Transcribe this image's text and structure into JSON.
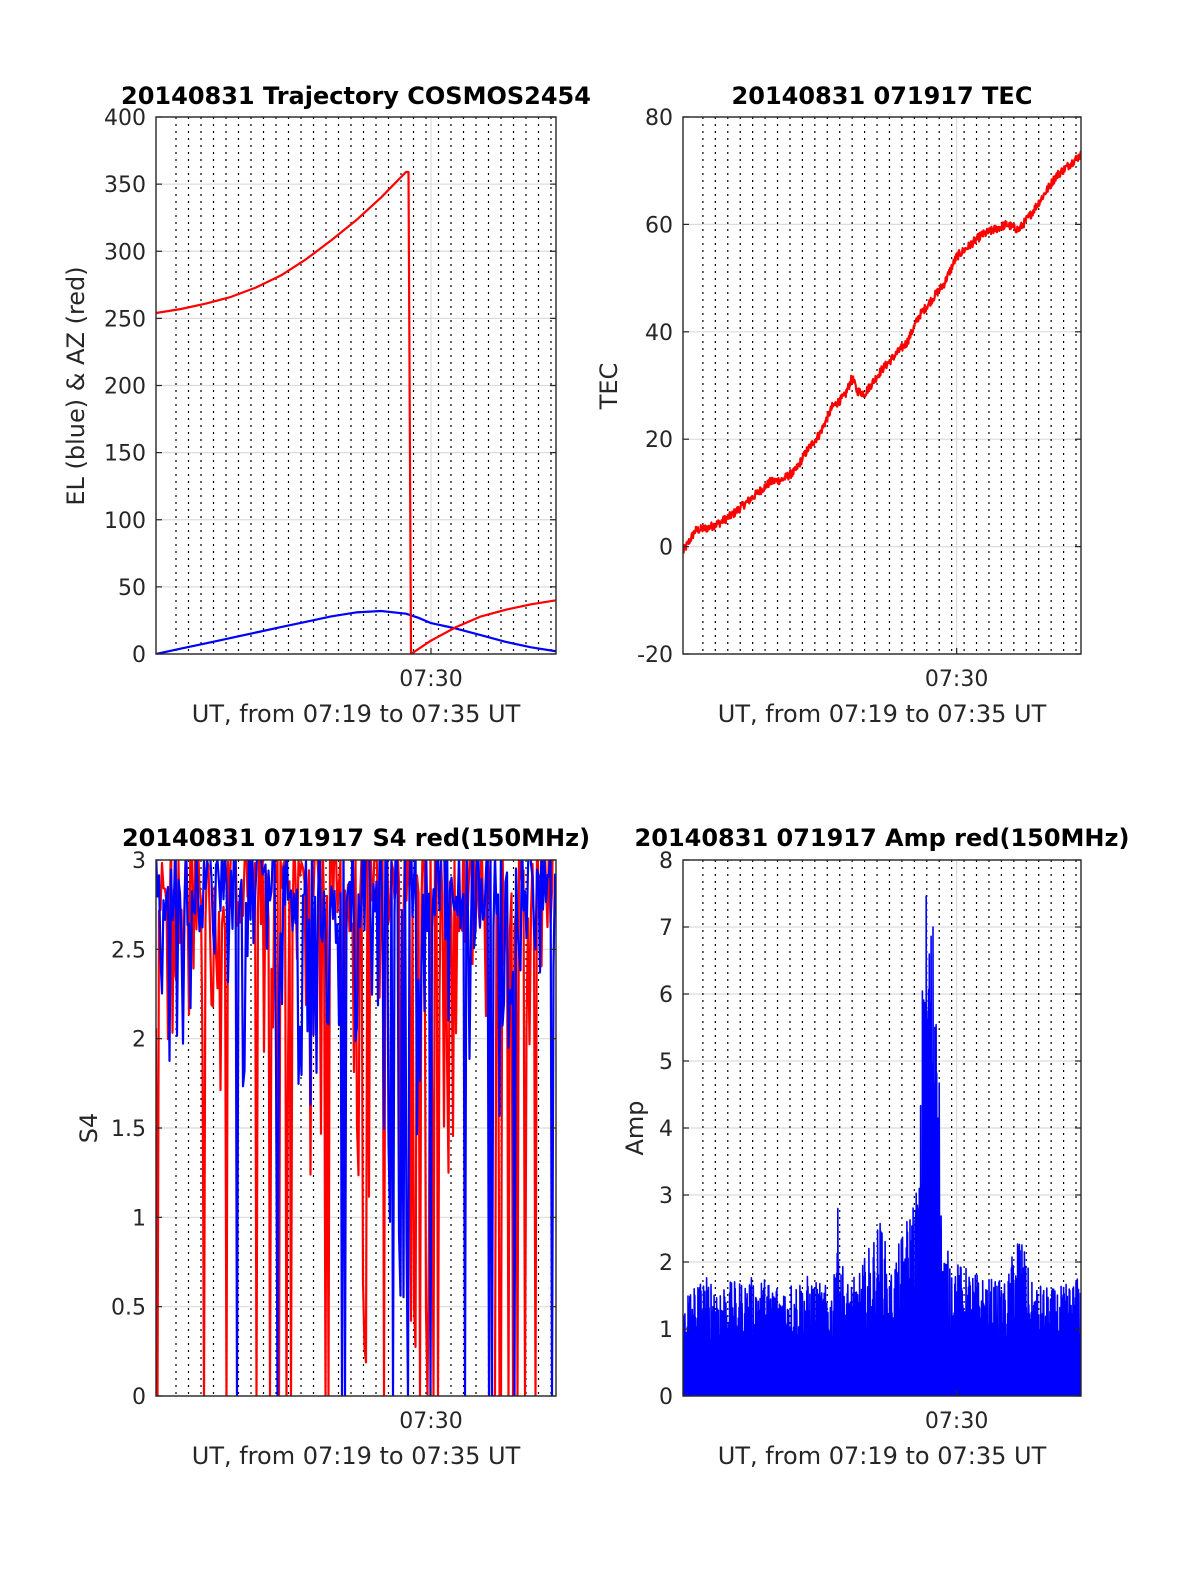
{
  "figure": {
    "background": "#ffffff"
  },
  "charts": [
    {
      "title": "20140831 Trajectory COSMOS2454",
      "xlabel": "UT, from 07:19 to 07:35 UT",
      "ylabel": "EL (blue) & AZ (red)",
      "xticks": [
        "07:30"
      ],
      "yticks": [
        "0",
        "50",
        "100",
        "150",
        "200",
        "250",
        "300",
        "350",
        "400"
      ]
    },
    {
      "title": "20140831 071917 TEC",
      "xlabel": "UT, from 07:19 to 07:35 UT",
      "ylabel": "TEC",
      "xticks": [
        "07:30"
      ],
      "yticks": [
        "-20",
        "0",
        "20",
        "40",
        "60",
        "80"
      ]
    },
    {
      "title": "20140831 071917 S4 red(150MHz)",
      "xlabel": "UT, from 07:19 to 07:35 UT",
      "ylabel": "S4",
      "xticks": [
        "07:30"
      ],
      "yticks": [
        "0",
        "0.5",
        "1",
        "1.5",
        "2",
        "2.5",
        "3"
      ]
    },
    {
      "title": "20140831 071917 Amp red(150MHz)",
      "xlabel": "UT, from 07:19 to 07:35 UT",
      "ylabel": "Amp",
      "xticks": [
        "07:30"
      ],
      "yticks": [
        "0",
        "1",
        "2",
        "3",
        "4",
        "5",
        "6",
        "7",
        "8"
      ]
    }
  ],
  "chart_data": [
    {
      "type": "line",
      "xrange_min": [
        0,
        16
      ],
      "x_tick_min": 11,
      "ylim": [
        0,
        400
      ],
      "grid": true,
      "minor_x_grid_dotted": true,
      "series": [
        {
          "color": "#0000ff",
          "x": [
            0,
            1,
            2,
            3,
            4,
            5,
            6,
            7,
            8,
            9,
            10,
            10.5,
            11,
            12,
            13,
            14,
            15,
            16
          ],
          "y": [
            0,
            4,
            8,
            12,
            16,
            20,
            24,
            28,
            31,
            32,
            30,
            27,
            23,
            19,
            14,
            9,
            5,
            2
          ]
        },
        {
          "color": "#ff0000",
          "x": [
            0,
            1,
            2,
            3,
            4,
            5,
            6,
            7,
            8,
            9,
            10,
            10.1,
            10.2,
            11,
            12,
            13,
            14,
            15,
            16
          ],
          "y": [
            254,
            257,
            261,
            266,
            273,
            282,
            294,
            308,
            323,
            340,
            359,
            359,
            0,
            10,
            20,
            28,
            33,
            37,
            40
          ]
        }
      ]
    },
    {
      "type": "line",
      "xrange_min": [
        0,
        16
      ],
      "x_tick_min": 11,
      "ylim": [
        -20,
        80
      ],
      "grid": true,
      "minor_x_grid_dotted": true,
      "noise_amplitude": 0.8,
      "series": [
        {
          "color": "#ff0000",
          "x": [
            0,
            0.5,
            1,
            1.5,
            2,
            3,
            3.5,
            4,
            4.5,
            5,
            5.5,
            6,
            6.5,
            6.8,
            7,
            7.3,
            8,
            9,
            9.5,
            10,
            10.5,
            11,
            11.5,
            12,
            13,
            13.5,
            14,
            15,
            16
          ],
          "y": [
            -1,
            3,
            3.5,
            4.5,
            6,
            10,
            12,
            12.5,
            14,
            18,
            21,
            26,
            28,
            31.5,
            29,
            28.5,
            33,
            38,
            43,
            46,
            49,
            54,
            56,
            58,
            60,
            59,
            62,
            69,
            73
          ]
        }
      ]
    },
    {
      "type": "line",
      "xrange_min": [
        0,
        16
      ],
      "x_tick_min": 11,
      "ylim": [
        0,
        3
      ],
      "grid": true,
      "minor_x_grid_dotted": true,
      "series": [
        {
          "color": "#ff0000",
          "x": [
            0.2,
            0.6,
            1.1,
            1.7,
            2.3,
            2.9,
            3.3,
            3.9,
            4.4,
            5.1,
            5.7,
            6.3,
            6.8,
            7.2,
            7.8,
            8.4,
            9.0,
            9.6,
            10.2,
            10.6,
            11.3,
            11.8,
            12.4,
            13.0,
            13.7,
            14.3,
            14.9,
            15.5
          ],
          "y": [
            2.4,
            1.9,
            2.6,
            2.1,
            2.5,
            1.2,
            2.0,
            0.3,
            2.2,
            1.6,
            2.7,
            1.0,
            2.3,
            0.7,
            2.1,
            0.3,
            2.5,
            1.5,
            0.6,
            0.2,
            2.4,
            1.2,
            2.7,
            2.2,
            1.8,
            2.6,
            2.0,
            2.9
          ]
        },
        {
          "color": "#0000ff",
          "x": [
            0.1,
            0.5,
            0.9,
            1.3,
            1.8,
            2.4,
            3.0,
            3.5,
            4.1,
            4.7,
            5.3,
            5.9,
            6.5,
            7.1,
            7.7,
            8.3,
            8.9,
            9.5,
            10.1,
            10.7,
            11.3,
            11.9,
            12.5,
            13.1,
            13.7,
            14.3,
            14.9,
            15.5
          ],
          "y": [
            2.6,
            1.7,
            2.4,
            2.0,
            2.5,
            2.3,
            2.6,
            2.1,
            2.8,
            2.2,
            2.7,
            1.6,
            2.3,
            2.5,
            1.9,
            2.7,
            2.2,
            1.1,
            0.7,
            2.6,
            1.9,
            2.5,
            2.0,
            2.6,
            1.8,
            2.4,
            2.7,
            2.2
          ]
        }
      ]
    },
    {
      "type": "line",
      "xrange_min": [
        0,
        16
      ],
      "x_tick_min": 11,
      "ylim": [
        0,
        8
      ],
      "grid": true,
      "minor_x_grid_dotted": true,
      "series": [
        {
          "color": "#0000ff",
          "x": [
            0,
            1,
            2,
            3,
            4,
            5,
            6,
            6.2,
            6.5,
            7,
            8,
            8.3,
            9.5,
            9.7,
            10,
            10.2,
            10.4,
            11,
            12,
            13,
            13.5,
            14,
            15,
            16
          ],
          "y": [
            1.6,
            1.8,
            1.7,
            1.8,
            1.7,
            1.8,
            1.6,
            2.9,
            1.7,
            1.8,
            2.7,
            1.8,
            3.3,
            7.9,
            7.3,
            7.6,
            2.3,
            2.0,
            1.8,
            1.7,
            2.6,
            1.7,
            1.6,
            1.8
          ]
        }
      ]
    }
  ]
}
